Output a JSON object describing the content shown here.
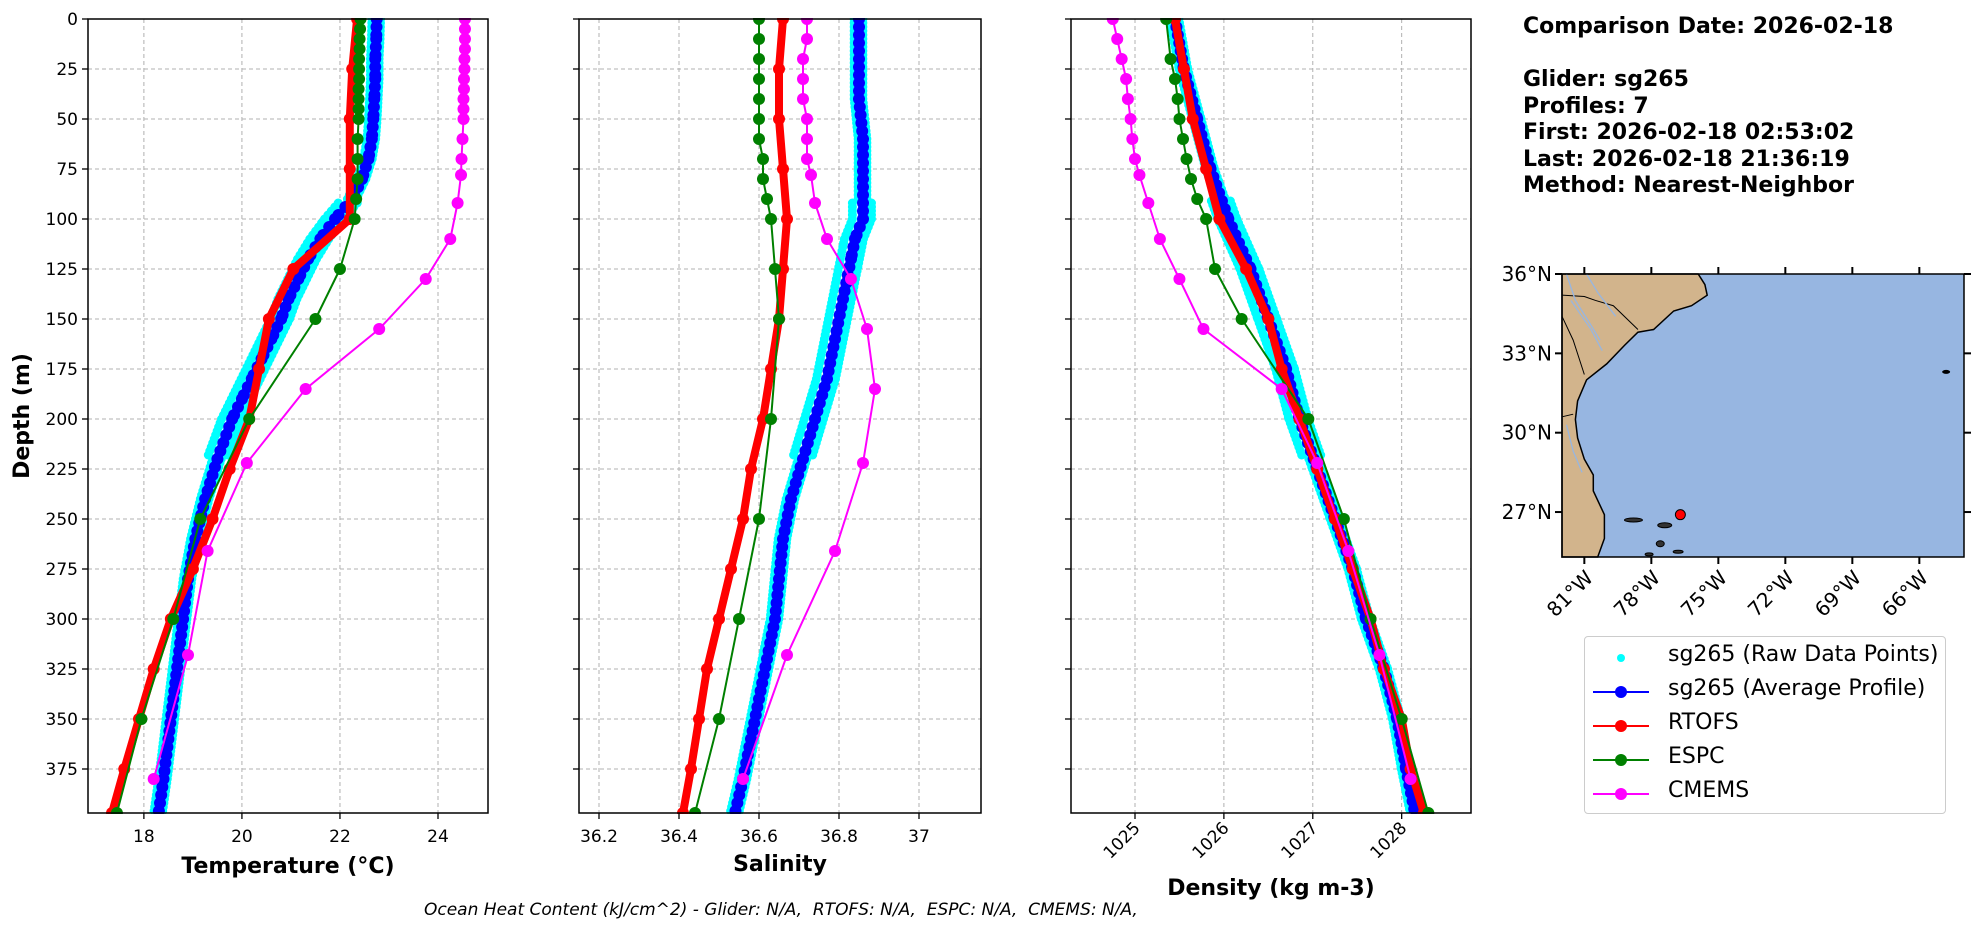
{
  "info": {
    "comparison_date": "Comparison Date: 2026-02-18",
    "glider": "Glider: sg265",
    "profiles": "Profiles: 7",
    "first": "First: 2026-02-18 02:53:02",
    "last": "Last: 2026-02-18 21:36:19",
    "method": "Method: Nearest-Neighbor"
  },
  "footer": "Ocean Heat Content (kJ/cm^2) - Glider: N/A,  RTOFS: N/A,  ESPC: N/A,  CMEMS: N/A,",
  "colors": {
    "raw": "#00ffff",
    "glider": "#0000ff",
    "rtofs": "#ff0000",
    "espc": "#008000",
    "cmems": "#ff00ff",
    "land": "#d2b48c",
    "ocean": "#97b6e1"
  },
  "legend": [
    {
      "label": "sg265 (Raw Data Points)",
      "key": "raw",
      "style": "dot"
    },
    {
      "label": "sg265 (Average Profile)",
      "key": "glider",
      "style": "line-marker"
    },
    {
      "label": "RTOFS",
      "key": "rtofs",
      "style": "line-marker"
    },
    {
      "label": "ESPC",
      "key": "espc",
      "style": "line-marker"
    },
    {
      "label": "CMEMS",
      "key": "cmems",
      "style": "line-marker"
    }
  ],
  "chart_data": [
    {
      "type": "line",
      "panel": "temperature",
      "xlabel": "Temperature (°C)",
      "ylabel": "Depth (m)",
      "xlim": [
        16.86,
        25.02
      ],
      "ylim": [
        397,
        0
      ],
      "xticks": [
        18,
        20,
        22,
        24
      ],
      "yticks": [
        0,
        25,
        50,
        75,
        100,
        125,
        150,
        175,
        200,
        225,
        250,
        275,
        300,
        325,
        350,
        375
      ],
      "grid": true,
      "series": [
        {
          "name": "sg265 (Average Profile)",
          "key": "glider",
          "depth": [
            0,
            10,
            20,
            30,
            40,
            50,
            60,
            70,
            80,
            90,
            100,
            110,
            120,
            130,
            140,
            150,
            160,
            170,
            180,
            190,
            200,
            220,
            240,
            260,
            280,
            300,
            320,
            340,
            360,
            380,
            397
          ],
          "values": [
            22.75,
            22.74,
            22.72,
            22.72,
            22.7,
            22.68,
            22.65,
            22.58,
            22.45,
            22.25,
            21.9,
            21.6,
            21.35,
            21.15,
            20.95,
            20.8,
            20.6,
            20.4,
            20.2,
            20.0,
            19.8,
            19.5,
            19.25,
            19.05,
            18.9,
            18.8,
            18.7,
            18.6,
            18.5,
            18.4,
            18.3
          ]
        },
        {
          "name": "RTOFS",
          "key": "rtofs",
          "depth": [
            0,
            25,
            50,
            75,
            100,
            125,
            150,
            175,
            200,
            225,
            250,
            275,
            300,
            325,
            350,
            375,
            397
          ],
          "values": [
            22.35,
            22.25,
            22.2,
            22.2,
            22.2,
            21.05,
            20.55,
            20.35,
            20.15,
            19.75,
            19.4,
            19.0,
            18.55,
            18.2,
            17.9,
            17.6,
            17.35
          ]
        },
        {
          "name": "ESPC",
          "key": "espc",
          "depth": [
            0,
            5,
            10,
            15,
            20,
            25,
            30,
            35,
            40,
            45,
            50,
            60,
            70,
            80,
            90,
            100,
            125,
            150,
            200,
            250,
            300,
            350,
            397
          ],
          "values": [
            22.42,
            22.41,
            22.4,
            22.4,
            22.39,
            22.39,
            22.39,
            22.38,
            22.38,
            22.38,
            22.38,
            22.36,
            22.36,
            22.36,
            22.33,
            22.3,
            22.0,
            21.5,
            20.15,
            19.15,
            18.6,
            17.95,
            17.45
          ]
        },
        {
          "name": "CMEMS",
          "key": "cmems",
          "depth": [
            0,
            5,
            10,
            15,
            20,
            25,
            30,
            35,
            40,
            45,
            50,
            60,
            70,
            78,
            92,
            110,
            130,
            155,
            185,
            222,
            266,
            318,
            380
          ],
          "values": [
            24.55,
            24.55,
            24.55,
            24.55,
            24.54,
            24.54,
            24.53,
            24.53,
            24.52,
            24.52,
            24.52,
            24.5,
            24.48,
            24.47,
            24.4,
            24.25,
            23.75,
            22.8,
            21.3,
            20.1,
            19.3,
            18.9,
            18.2
          ]
        }
      ]
    },
    {
      "type": "line",
      "panel": "salinity",
      "xlabel": "Salinity",
      "ylabel": "",
      "xlim": [
        36.15,
        37.155
      ],
      "ylim": [
        397,
        0
      ],
      "xticks": [
        36.2,
        36.4,
        36.6,
        36.8,
        37.0
      ],
      "yticks": [
        0,
        25,
        50,
        75,
        100,
        125,
        150,
        175,
        200,
        225,
        250,
        275,
        300,
        325,
        350,
        375
      ],
      "grid": true,
      "series": [
        {
          "name": "sg265 (Average Profile)",
          "key": "glider",
          "depth": [
            0,
            20,
            40,
            60,
            80,
            100,
            110,
            120,
            140,
            160,
            180,
            200,
            220,
            240,
            260,
            280,
            300,
            320,
            340,
            360,
            380,
            397
          ],
          "values": [
            36.85,
            36.85,
            36.85,
            36.86,
            36.86,
            36.86,
            36.84,
            36.83,
            36.81,
            36.79,
            36.77,
            36.74,
            36.71,
            36.68,
            36.66,
            36.65,
            36.64,
            36.62,
            36.6,
            36.58,
            36.56,
            36.54
          ]
        },
        {
          "name": "RTOFS",
          "key": "rtofs",
          "depth": [
            0,
            25,
            50,
            75,
            100,
            125,
            150,
            175,
            200,
            225,
            250,
            275,
            300,
            325,
            350,
            375,
            397
          ],
          "values": [
            36.66,
            36.65,
            36.65,
            36.66,
            36.67,
            36.66,
            36.65,
            36.63,
            36.61,
            36.58,
            36.56,
            36.53,
            36.5,
            36.47,
            36.45,
            36.43,
            36.41
          ]
        },
        {
          "name": "ESPC",
          "key": "espc",
          "depth": [
            0,
            10,
            20,
            30,
            40,
            50,
            60,
            70,
            80,
            90,
            100,
            125,
            150,
            200,
            250,
            300,
            350,
            397
          ],
          "values": [
            36.6,
            36.6,
            36.6,
            36.6,
            36.6,
            36.6,
            36.6,
            36.61,
            36.61,
            36.62,
            36.63,
            36.64,
            36.65,
            36.63,
            36.6,
            36.55,
            36.5,
            36.44
          ]
        },
        {
          "name": "CMEMS",
          "key": "cmems",
          "depth": [
            0,
            10,
            20,
            30,
            40,
            50,
            60,
            70,
            78,
            92,
            110,
            130,
            155,
            185,
            222,
            266,
            318,
            380
          ],
          "values": [
            36.72,
            36.72,
            36.71,
            36.71,
            36.71,
            36.72,
            36.72,
            36.72,
            36.73,
            36.74,
            36.77,
            36.83,
            36.87,
            36.89,
            36.86,
            36.79,
            36.67,
            36.56
          ]
        }
      ]
    },
    {
      "type": "line",
      "panel": "density",
      "xlabel": "Density (kg m-3)",
      "ylabel": "",
      "xlim": [
        1024.28,
        1028.78
      ],
      "ylim": [
        397,
        0
      ],
      "xticks": [
        1025,
        1026,
        1027,
        1028
      ],
      "yticks": [
        0,
        25,
        50,
        75,
        100,
        125,
        150,
        175,
        200,
        225,
        250,
        275,
        300,
        325,
        350,
        375
      ],
      "grid": true,
      "series": [
        {
          "name": "sg265 (Average Profile)",
          "key": "glider",
          "depth": [
            0,
            25,
            50,
            75,
            100,
            125,
            150,
            175,
            200,
            225,
            250,
            275,
            300,
            325,
            350,
            375,
            397
          ],
          "values": [
            1025.45,
            1025.55,
            1025.7,
            1025.85,
            1026.05,
            1026.3,
            1026.5,
            1026.7,
            1026.85,
            1027.05,
            1027.25,
            1027.45,
            1027.6,
            1027.8,
            1027.95,
            1028.05,
            1028.15
          ]
        },
        {
          "name": "RTOFS",
          "key": "rtofs",
          "depth": [
            0,
            25,
            50,
            75,
            100,
            125,
            150,
            175,
            200,
            225,
            250,
            275,
            300,
            325,
            350,
            375,
            397
          ],
          "values": [
            1025.45,
            1025.55,
            1025.65,
            1025.8,
            1025.95,
            1026.25,
            1026.5,
            1026.65,
            1026.85,
            1027.05,
            1027.25,
            1027.45,
            1027.65,
            1027.8,
            1028.0,
            1028.1,
            1028.25
          ]
        },
        {
          "name": "ESPC",
          "key": "espc",
          "depth": [
            0,
            20,
            30,
            40,
            50,
            60,
            70,
            80,
            90,
            100,
            125,
            150,
            200,
            250,
            300,
            350,
            397
          ],
          "values": [
            1025.35,
            1025.4,
            1025.45,
            1025.48,
            1025.5,
            1025.54,
            1025.58,
            1025.63,
            1025.7,
            1025.8,
            1025.9,
            1026.2,
            1026.95,
            1027.35,
            1027.65,
            1028.0,
            1028.3
          ]
        },
        {
          "name": "CMEMS",
          "key": "cmems",
          "depth": [
            0,
            10,
            20,
            30,
            40,
            50,
            60,
            70,
            78,
            92,
            110,
            130,
            155,
            185,
            222,
            266,
            318,
            380
          ],
          "values": [
            1024.75,
            1024.8,
            1024.85,
            1024.9,
            1024.92,
            1024.95,
            1024.97,
            1025.0,
            1025.05,
            1025.15,
            1025.28,
            1025.5,
            1025.77,
            1026.65,
            1027.05,
            1027.4,
            1027.75,
            1028.1
          ]
        }
      ]
    },
    {
      "type": "scatter",
      "panel": "map",
      "title": "",
      "xticks": [
        "81°W",
        "78°W",
        "75°W",
        "72°W",
        "69°W",
        "66°W"
      ],
      "yticks": [
        "36°N",
        "33°N",
        "30°N",
        "27°N"
      ],
      "lon_range": [
        -82,
        -64
      ],
      "lat_range": [
        25.3,
        36
      ],
      "points": [
        {
          "name": "sg265 location",
          "lon": -76.7,
          "lat": 26.9,
          "color": "#ff0000"
        }
      ]
    }
  ]
}
